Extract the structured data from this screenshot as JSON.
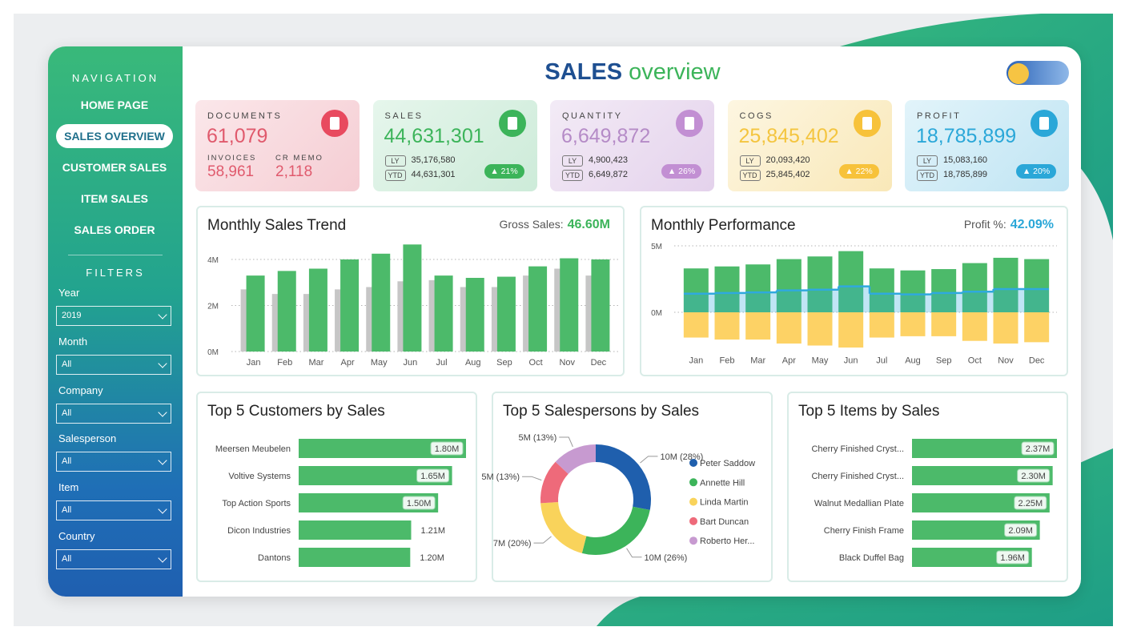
{
  "header": {
    "title": "SALES",
    "subtitle": "overview"
  },
  "navigation": {
    "title": "NAVIGATION",
    "items": [
      "HOME PAGE",
      "SALES OVERVIEW",
      "CUSTOMER SALES",
      "ITEM SALES",
      "SALES ORDER"
    ],
    "active": 1
  },
  "filters": {
    "title": "FILTERS",
    "fields": [
      {
        "label": "Year",
        "value": "2019"
      },
      {
        "label": "Month",
        "value": "All"
      },
      {
        "label": "Company",
        "value": "All"
      },
      {
        "label": "Salesperson",
        "value": "All"
      },
      {
        "label": "Item",
        "value": "All"
      },
      {
        "label": "Country",
        "value": "All"
      }
    ]
  },
  "kpis": [
    {
      "label": "DOCUMENTS",
      "value": "61,079",
      "sub": [
        {
          "label": "INVOICES",
          "value": "58,961"
        },
        {
          "label": "CR MEMO",
          "value": "2,118"
        }
      ]
    },
    {
      "label": "SALES",
      "value": "44,631,301",
      "ly_label": "LY",
      "ly": "35,176,580",
      "ytd_label": "YTD",
      "ytd": "44,631,301",
      "change": "▲ 21%"
    },
    {
      "label": "QUANTITY",
      "value": "6,649,872",
      "ly_label": "LY",
      "ly": "4,900,423",
      "ytd_label": "YTD",
      "ytd": "6,649,872",
      "change": "▲ 26%"
    },
    {
      "label": "COGS",
      "value": "25,845,402",
      "ly_label": "LY",
      "ly": "20,093,420",
      "ytd_label": "YTD",
      "ytd": "25,845,402",
      "change": "▲ 22%"
    },
    {
      "label": "PROFIT",
      "value": "18,785,899",
      "ly_label": "LY",
      "ly": "15,083,160",
      "ytd_label": "YTD",
      "ytd": "18,785,899",
      "change": "▲ 20%"
    }
  ],
  "chart_data": [
    {
      "type": "bar",
      "title": "Monthly Sales Trend",
      "annotation_label": "Gross Sales:",
      "annotation_value": "46.60M",
      "categories": [
        "Jan",
        "Feb",
        "Mar",
        "Apr",
        "May",
        "Jun",
        "Jul",
        "Aug",
        "Sep",
        "Oct",
        "Nov",
        "Dec"
      ],
      "series": [
        {
          "color": "#c6c6c6",
          "values": [
            2700000,
            2500000,
            2500000,
            2700000,
            2800000,
            3050000,
            3100000,
            2800000,
            2800000,
            3300000,
            3600000,
            3300000
          ]
        },
        {
          "color": "#4cba6a",
          "values": [
            3300000,
            3500000,
            3600000,
            4000000,
            4250000,
            4650000,
            3300000,
            3200000,
            3250000,
            3700000,
            4050000,
            4000000
          ]
        }
      ],
      "ylim": [
        0,
        4800000
      ],
      "yticks": [
        {
          "value": 0,
          "label": "0M"
        },
        {
          "value": 2000000,
          "label": "2M"
        },
        {
          "value": 4000000,
          "label": "4M"
        }
      ],
      "grid": true
    },
    {
      "type": "combo",
      "title": "Monthly Performance",
      "annotation_label": "Profit %:",
      "annotation_value": "42.09%",
      "categories": [
        "Jan",
        "Feb",
        "Mar",
        "Apr",
        "May",
        "Jun",
        "Jul",
        "Aug",
        "Sep",
        "Oct",
        "Nov",
        "Dec"
      ],
      "series": [
        {
          "color": "#4cba6a",
          "style": "bar",
          "values": [
            3300000,
            3450000,
            3600000,
            4000000,
            4200000,
            4600000,
            3300000,
            3150000,
            3250000,
            3700000,
            4100000,
            4000000
          ]
        },
        {
          "color": "#fdd265",
          "style": "bar",
          "values": [
            -1900000,
            -2050000,
            -2050000,
            -2350000,
            -2500000,
            -2650000,
            -1900000,
            -1800000,
            -1800000,
            -2150000,
            -2350000,
            -2250000
          ]
        },
        {
          "color": "#2fa9de",
          "style": "line",
          "values": [
            1400000,
            1450000,
            1500000,
            1650000,
            1700000,
            1950000,
            1400000,
            1350000,
            1450000,
            1550000,
            1750000,
            1750000
          ]
        }
      ],
      "ylim": [
        -2800000,
        5300000
      ],
      "yticks": [
        {
          "value": 0,
          "label": "0M"
        },
        {
          "value": 5000000,
          "label": "5M"
        }
      ],
      "grid": true
    },
    {
      "type": "hbar",
      "title": "Top 5 Customers by Sales",
      "color": "#4cba6a",
      "categories": [
        "Meersen Meubelen",
        "Voltive Systems",
        "Top Action Sports",
        "Dicon Industries",
        "Dantons"
      ],
      "values": [
        1800000,
        1650000,
        1500000,
        1210000,
        1200000
      ],
      "value_labels": [
        "1.80M",
        "1.65M",
        "1.50M",
        "1.21M",
        "1.20M"
      ]
    },
    {
      "type": "donut",
      "title": "Top 5 Salespersons by Sales",
      "categories": [
        "Peter Saddow",
        "Annette Hill",
        "Linda Martin",
        "Bart Duncan",
        "Roberto Her..."
      ],
      "values": [
        28,
        26,
        20,
        13,
        13
      ],
      "value_labels": [
        "10M (28%)",
        "10M (26%)",
        "7M (20%)",
        "5M (13%)",
        "5M (13%)"
      ],
      "colors": [
        "#1f5fad",
        "#3cb45a",
        "#f9d35b",
        "#ee6a7a",
        "#c79ad0"
      ]
    },
    {
      "type": "hbar",
      "title": "Top 5 Items by Sales",
      "color": "#4cba6a",
      "categories": [
        "Cherry Finished Cryst...",
        "Cherry Finished Cryst...",
        "Walnut Medallian Plate",
        "Cherry Finish Frame",
        "Black Duffel Bag"
      ],
      "values": [
        2370000,
        2300000,
        2250000,
        2090000,
        1960000
      ],
      "value_labels": [
        "2.37M",
        "2.30M",
        "2.25M",
        "2.09M",
        "1.96M"
      ]
    }
  ]
}
